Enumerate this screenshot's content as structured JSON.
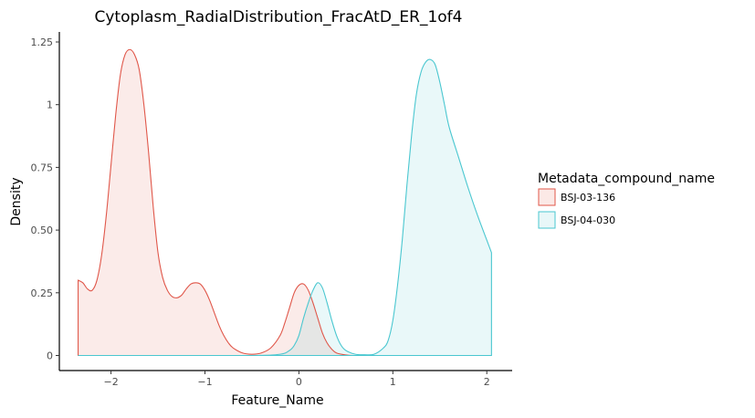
{
  "chart_data": {
    "type": "area",
    "title": "Cytoplasm_RadialDistribution_FracAtD_ER_1of4",
    "xlabel": "Feature_Name",
    "ylabel": "Density",
    "xlim": [
      -2.55,
      2.27
    ],
    "ylim": [
      -0.06,
      1.29
    ],
    "x_ticks": [
      -2,
      -1,
      0,
      1,
      2
    ],
    "x_tick_labels": [
      "−2",
      "−1",
      "0",
      "1",
      "2"
    ],
    "y_ticks": [
      0,
      0.25,
      0.5,
      0.75,
      1,
      1.25
    ],
    "y_tick_labels": [
      "0",
      "0.25",
      "0.50",
      "0.75",
      "1",
      "1.25"
    ],
    "grid": false,
    "legend": {
      "title": "Metadata_compound_name",
      "position": "right"
    },
    "series": [
      {
        "name": "BSJ-03-136",
        "color": "#e0574a",
        "fill": "#fbe9e6",
        "x": [
          -2.35,
          -2.3,
          -2.25,
          -2.2,
          -2.15,
          -2.1,
          -2.05,
          -2.0,
          -1.95,
          -1.9,
          -1.85,
          -1.8,
          -1.75,
          -1.7,
          -1.65,
          -1.6,
          -1.55,
          -1.5,
          -1.45,
          -1.4,
          -1.35,
          -1.3,
          -1.25,
          -1.2,
          -1.15,
          -1.1,
          -1.05,
          -1.0,
          -0.95,
          -0.9,
          -0.85,
          -0.8,
          -0.75,
          -0.7,
          -0.6,
          -0.5,
          -0.4,
          -0.3,
          -0.2,
          -0.15,
          -0.1,
          -0.05,
          0.0,
          0.05,
          0.1,
          0.15,
          0.2,
          0.25,
          0.3,
          0.35,
          0.4,
          0.5,
          0.6,
          0.8,
          1.0,
          1.5,
          2.05
        ],
        "y": [
          0.3,
          0.29,
          0.265,
          0.26,
          0.3,
          0.4,
          0.56,
          0.76,
          0.96,
          1.12,
          1.2,
          1.22,
          1.2,
          1.14,
          1.0,
          0.81,
          0.59,
          0.41,
          0.31,
          0.26,
          0.235,
          0.23,
          0.24,
          0.265,
          0.285,
          0.29,
          0.285,
          0.26,
          0.22,
          0.17,
          0.12,
          0.08,
          0.05,
          0.03,
          0.01,
          0.005,
          0.01,
          0.03,
          0.08,
          0.13,
          0.19,
          0.25,
          0.28,
          0.285,
          0.26,
          0.21,
          0.15,
          0.09,
          0.05,
          0.025,
          0.01,
          0.002,
          0.0,
          0.0,
          0.0,
          0.0,
          0.0
        ]
      },
      {
        "name": "BSJ-04-030",
        "color": "#4ac7d0",
        "fill": "#e8f7f8",
        "x": [
          -2.35,
          -1.5,
          -0.5,
          -0.2,
          -0.1,
          -0.05,
          0.0,
          0.05,
          0.1,
          0.15,
          0.2,
          0.25,
          0.3,
          0.35,
          0.4,
          0.45,
          0.5,
          0.6,
          0.7,
          0.8,
          0.9,
          0.95,
          1.0,
          1.05,
          1.1,
          1.15,
          1.2,
          1.25,
          1.3,
          1.35,
          1.4,
          1.45,
          1.5,
          1.55,
          1.6,
          1.7,
          1.8,
          1.9,
          2.0,
          2.05
        ],
        "y": [
          0.0,
          0.0,
          0.0,
          0.005,
          0.02,
          0.04,
          0.08,
          0.15,
          0.21,
          0.26,
          0.29,
          0.27,
          0.21,
          0.14,
          0.08,
          0.04,
          0.02,
          0.005,
          0.003,
          0.005,
          0.03,
          0.06,
          0.14,
          0.28,
          0.46,
          0.68,
          0.88,
          1.04,
          1.13,
          1.17,
          1.18,
          1.16,
          1.09,
          1.0,
          0.91,
          0.79,
          0.67,
          0.56,
          0.46,
          0.41
        ]
      }
    ]
  }
}
